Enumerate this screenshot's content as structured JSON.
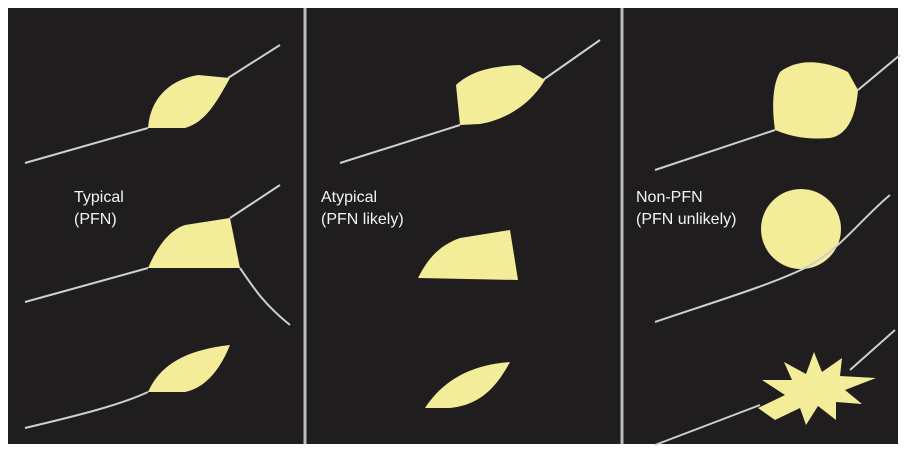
{
  "panels": [
    {
      "label": [
        "Typical",
        "(PFN)"
      ]
    },
    {
      "label": [
        "Atypical",
        "(PFN likely)"
      ]
    },
    {
      "label": [
        "Non-PFN",
        "(PFN unlikely)"
      ]
    }
  ]
}
